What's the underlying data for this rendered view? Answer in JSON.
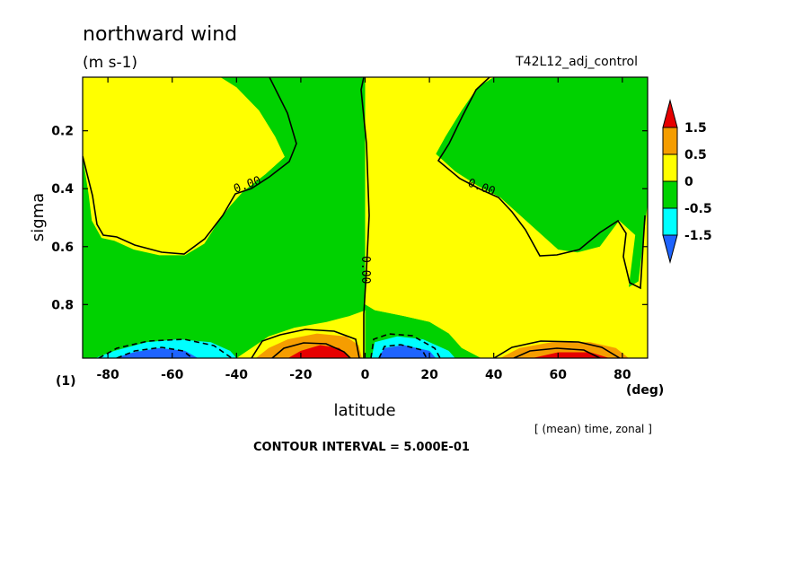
{
  "chart_data": {
    "type": "heatmap",
    "title": "northward wind",
    "units_label": "(m s-1)",
    "run_label": "T42L12_adj_control",
    "xlabel": "latitude",
    "x_unit_label": "(deg)",
    "ylabel": "sigma",
    "index_label": "(1)",
    "xlim": [
      -87.86,
      87.86
    ],
    "ylim": [
      0.985,
      0.015
    ],
    "x_ticks": [
      -80,
      -60,
      -40,
      -20,
      0,
      20,
      40,
      60,
      80
    ],
    "x_tick_labels": [
      "-80",
      "-60",
      "-40",
      "-20",
      "0",
      "20",
      "40",
      "60",
      "80"
    ],
    "y_ticks": [
      0.2,
      0.4,
      0.6,
      0.8
    ],
    "y_tick_labels": [
      "0.2",
      "0.4",
      "0.6",
      "0.8"
    ],
    "averaging_note": "[ (mean) time, zonal ]",
    "contour_interval_text": "CONTOUR INTERVAL = 5.000E-01",
    "contour_labels": [
      "0.00",
      "0.00",
      "0.00"
    ],
    "legend": {
      "labels": [
        "1.5",
        "0.5",
        "0",
        "-0.5",
        "-1.5"
      ],
      "bins": [
        {
          "range": "> 1.5",
          "color": "#e60000"
        },
        {
          "range": "0.5 to 1.5",
          "color": "#f59d00"
        },
        {
          "range": "0 to 0.5",
          "color": "#ffff00"
        },
        {
          "range": "-0.5 to 0",
          "color": "#00d200"
        },
        {
          "range": "-1.5 to -0.5",
          "color": "#00ffff"
        },
        {
          "range": "< -1.5",
          "color": "#1e64ff"
        }
      ]
    },
    "regions": [
      {
        "name": "upper-sh-positive",
        "color": "#ffff00",
        "polygon": [
          [
            -87.86,
            0.015
          ],
          [
            -45,
            0.015
          ],
          [
            -40,
            0.05
          ],
          [
            -33,
            0.13
          ],
          [
            -28,
            0.22
          ],
          [
            -25,
            0.29
          ],
          [
            -31,
            0.35
          ],
          [
            -38,
            0.41
          ],
          [
            -42,
            0.46
          ],
          [
            -46,
            0.52
          ],
          [
            -50,
            0.59
          ],
          [
            -56,
            0.63
          ],
          [
            -64,
            0.63
          ],
          [
            -72,
            0.61
          ],
          [
            -78,
            0.58
          ],
          [
            -82,
            0.57
          ],
          [
            -85,
            0.51
          ],
          [
            -86,
            0.42
          ],
          [
            -87.86,
            0.29
          ]
        ]
      },
      {
        "name": "upper-nh-negative",
        "color": "#00d200",
        "polygon": [
          [
            87.86,
            0.015
          ],
          [
            40,
            0.015
          ],
          [
            35,
            0.05
          ],
          [
            30,
            0.13
          ],
          [
            25,
            0.22
          ],
          [
            22,
            0.28
          ],
          [
            28,
            0.34
          ],
          [
            35,
            0.39
          ],
          [
            42,
            0.43
          ],
          [
            48,
            0.49
          ],
          [
            54,
            0.55
          ],
          [
            60,
            0.61
          ],
          [
            66,
            0.62
          ],
          [
            73,
            0.6
          ],
          [
            79,
            0.51
          ],
          [
            84,
            0.56
          ],
          [
            82,
            0.74
          ],
          [
            85,
            0.72
          ],
          [
            87.86,
            0.45
          ]
        ]
      },
      {
        "name": "nh-midlevel-positive",
        "color": "#ffff00",
        "polygon": [
          [
            0,
            0.015
          ],
          [
            0,
            0.8
          ],
          [
            3,
            0.82
          ],
          [
            12,
            0.84
          ],
          [
            20,
            0.86
          ],
          [
            26,
            0.9
          ],
          [
            30,
            0.95
          ],
          [
            36,
            0.985
          ],
          [
            87.86,
            0.985
          ],
          [
            87.86,
            0.45
          ],
          [
            85,
            0.72
          ],
          [
            82,
            0.74
          ],
          [
            84,
            0.56
          ],
          [
            79,
            0.51
          ],
          [
            73,
            0.6
          ],
          [
            66,
            0.62
          ],
          [
            60,
            0.61
          ],
          [
            54,
            0.55
          ],
          [
            48,
            0.49
          ],
          [
            42,
            0.43
          ],
          [
            35,
            0.39
          ],
          [
            28,
            0.34
          ],
          [
            22,
            0.28
          ],
          [
            25,
            0.22
          ],
          [
            30,
            0.13
          ],
          [
            35,
            0.05
          ],
          [
            40,
            0.015
          ]
        ]
      },
      {
        "name": "equator-green-wedge",
        "color": "#00d200",
        "polygon": [
          [
            0,
            0.8
          ],
          [
            0,
            0.985
          ],
          [
            4,
            0.94
          ],
          [
            12,
            0.92
          ],
          [
            22,
            0.94
          ],
          [
            30,
            0.96
          ],
          [
            36,
            0.985
          ],
          [
            30,
            0.95
          ],
          [
            26,
            0.9
          ],
          [
            20,
            0.86
          ],
          [
            12,
            0.84
          ],
          [
            3,
            0.82
          ]
        ]
      },
      {
        "name": "sh-surface-positive",
        "color": "#ffff00",
        "polygon": [
          [
            -40,
            0.985
          ],
          [
            -30,
            0.91
          ],
          [
            -22,
            0.88
          ],
          [
            -12,
            0.86
          ],
          [
            -5,
            0.84
          ],
          [
            0,
            0.82
          ],
          [
            0,
            0.985
          ]
        ]
      },
      {
        "name": "sh-surface-cell-orange",
        "color": "#f59d00",
        "polygon": [
          [
            -34,
            0.985
          ],
          [
            -30,
            0.95
          ],
          [
            -24,
            0.92
          ],
          [
            -15,
            0.9
          ],
          [
            -6,
            0.91
          ],
          [
            -2,
            0.94
          ],
          [
            -1,
            0.985
          ]
        ]
      },
      {
        "name": "sh-surface-cell-red",
        "color": "#e60000",
        "polygon": [
          [
            -24,
            0.985
          ],
          [
            -20,
            0.96
          ],
          [
            -14,
            0.94
          ],
          [
            -8,
            0.95
          ],
          [
            -5,
            0.985
          ]
        ]
      },
      {
        "name": "nh-surface-cell-orange",
        "color": "#f59d00",
        "polygon": [
          [
            42,
            0.985
          ],
          [
            48,
            0.95
          ],
          [
            58,
            0.93
          ],
          [
            70,
            0.93
          ],
          [
            78,
            0.95
          ],
          [
            82,
            0.985
          ]
        ]
      },
      {
        "name": "nh-surface-cell-red",
        "color": "#e60000",
        "polygon": [
          [
            52,
            0.985
          ],
          [
            60,
            0.965
          ],
          [
            70,
            0.965
          ],
          [
            76,
            0.985
          ]
        ]
      },
      {
        "name": "sh-surface-cell-cyan",
        "color": "#00ffff",
        "polygon": [
          [
            -84,
            0.985
          ],
          [
            -78,
            0.96
          ],
          [
            -68,
            0.93
          ],
          [
            -58,
            0.92
          ],
          [
            -48,
            0.93
          ],
          [
            -42,
            0.96
          ],
          [
            -40,
            0.985
          ]
        ]
      },
      {
        "name": "sh-surface-cell-blue",
        "color": "#1e64ff",
        "polygon": [
          [
            -78,
            0.985
          ],
          [
            -72,
            0.965
          ],
          [
            -64,
            0.95
          ],
          [
            -56,
            0.96
          ],
          [
            -52,
            0.985
          ]
        ]
      },
      {
        "name": "eq-surface-cell-cyan",
        "color": "#00ffff",
        "polygon": [
          [
            2,
            0.985
          ],
          [
            3,
            0.93
          ],
          [
            10,
            0.91
          ],
          [
            18,
            0.92
          ],
          [
            26,
            0.96
          ],
          [
            28,
            0.985
          ]
        ]
      },
      {
        "name": "eq-surface-cell-blue",
        "color": "#1e64ff",
        "polygon": [
          [
            4,
            0.985
          ],
          [
            6,
            0.95
          ],
          [
            12,
            0.94
          ],
          [
            20,
            0.96
          ],
          [
            22,
            0.985
          ]
        ]
      }
    ]
  }
}
